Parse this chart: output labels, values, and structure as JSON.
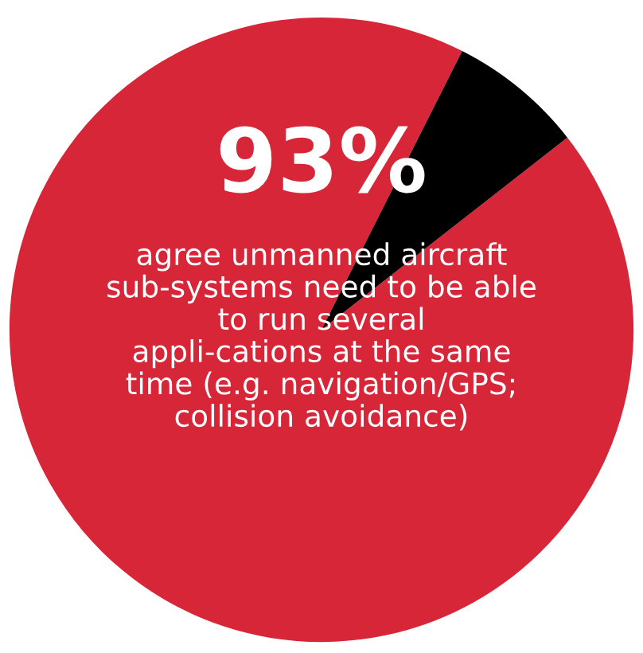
{
  "chart_data": {
    "type": "pie",
    "categories": [
      null,
      null
    ],
    "values": [
      93,
      7
    ],
    "colors": [
      "#d72638",
      "#000000"
    ],
    "value_labels": [
      "93%",
      null
    ],
    "annotations": [
      "agree unmanned aircraft sub-systems need to be able to run several appli-cations at the same time (e.g. navigation/GPS; collision avoidance)"
    ]
  }
}
